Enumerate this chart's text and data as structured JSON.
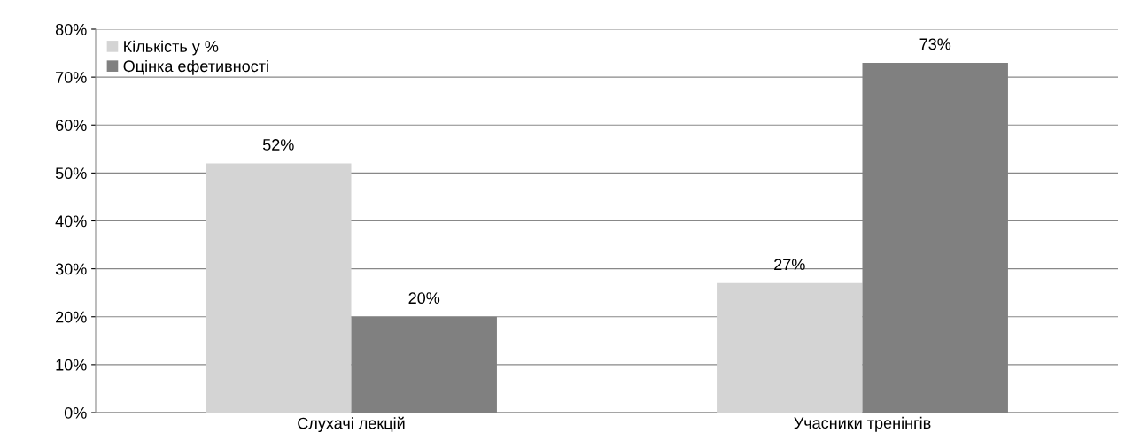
{
  "chart_data": {
    "type": "bar",
    "categories": [
      "Слухачі лекцій",
      "Учасники тренінгів"
    ],
    "series": [
      {
        "name": "Кількість у %",
        "color": "#d4d4d4",
        "values": [
          52,
          27
        ],
        "value_labels": [
          "52%",
          "27%"
        ]
      },
      {
        "name": "Оцінка ефетивності",
        "color": "#808080",
        "values": [
          20,
          73
        ],
        "value_labels": [
          "20%",
          "73%"
        ]
      }
    ],
    "ylim": [
      0,
      80
    ],
    "yticks": [
      {
        "value": 0,
        "label": "0%"
      },
      {
        "value": 10,
        "label": "10%"
      },
      {
        "value": 20,
        "label": "20%"
      },
      {
        "value": 30,
        "label": "30%"
      },
      {
        "value": 40,
        "label": "40%"
      },
      {
        "value": 50,
        "label": "50%"
      },
      {
        "value": 60,
        "label": "60%"
      },
      {
        "value": 70,
        "label": "70%"
      },
      {
        "value": 80,
        "label": "80%"
      }
    ],
    "grid": "y",
    "legend": "top left"
  }
}
